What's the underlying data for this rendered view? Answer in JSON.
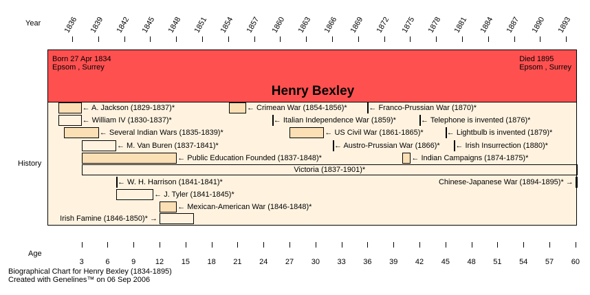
{
  "chart_data": {
    "type": "timeline",
    "title": "Henry Bexley",
    "row_labels": {
      "year": "Year",
      "history": "History",
      "age": "Age"
    },
    "born": {
      "line1": "Born 27 Apr 1834",
      "line2": "Epsom , Surrey"
    },
    "died": {
      "line1": "Died 1895",
      "line2": "Epsom , Surrey"
    },
    "year_ticks": [
      1836,
      1839,
      1842,
      1845,
      1848,
      1851,
      1854,
      1857,
      1860,
      1863,
      1866,
      1869,
      1872,
      1875,
      1878,
      1881,
      1884,
      1887,
      1890,
      1893
    ],
    "age_ticks": [
      3,
      6,
      9,
      12,
      15,
      18,
      21,
      24,
      27,
      30,
      33,
      36,
      39,
      42,
      45,
      48,
      51,
      54,
      57,
      60
    ],
    "birth_year": 1834.32,
    "death_year": 1895,
    "events": [
      {
        "label": "A. Jackson (1829-1837)*",
        "start": 1834.32,
        "end": 1837,
        "row": 0,
        "filled": true,
        "label_side": "right"
      },
      {
        "label": "Crimean War (1854-1856)*",
        "start": 1854,
        "end": 1856,
        "row": 0,
        "filled": true,
        "label_side": "right"
      },
      {
        "label": "Franco-Prussian War (1870)*",
        "start": 1870,
        "end": 1870,
        "row": 0,
        "filled": true,
        "label_side": "right"
      },
      {
        "label": "William IV (1830-1837)*",
        "start": 1834.32,
        "end": 1837,
        "row": 1,
        "filled": false,
        "label_side": "right"
      },
      {
        "label": "Italian Independence War (1859)*",
        "start": 1859,
        "end": 1859,
        "row": 1,
        "filled": true,
        "label_side": "right"
      },
      {
        "label": "Telephone is invented (1876)*",
        "start": 1876,
        "end": 1876,
        "row": 1,
        "filled": true,
        "label_side": "right"
      },
      {
        "label": "Several Indian Wars (1835-1839)*",
        "start": 1835,
        "end": 1839,
        "row": 2,
        "filled": true,
        "label_side": "right"
      },
      {
        "label": "US Civil War (1861-1865)*",
        "start": 1861,
        "end": 1865,
        "row": 2,
        "filled": true,
        "label_side": "right"
      },
      {
        "label": "Lightbulb is invented (1879)*",
        "start": 1879,
        "end": 1879,
        "row": 2,
        "filled": true,
        "label_side": "right"
      },
      {
        "label": "M. Van Buren (1837-1841)*",
        "start": 1837,
        "end": 1841,
        "row": 3,
        "filled": false,
        "label_side": "right"
      },
      {
        "label": "Austro-Prussian War (1866)*",
        "start": 1866,
        "end": 1866,
        "row": 3,
        "filled": true,
        "label_side": "right"
      },
      {
        "label": "Irish Insurrection (1880)*",
        "start": 1880,
        "end": 1880,
        "row": 3,
        "filled": true,
        "label_side": "right"
      },
      {
        "label": "Public Education Founded (1837-1848)*",
        "start": 1837,
        "end": 1848,
        "row": 4,
        "filled": true,
        "label_side": "right"
      },
      {
        "label": "Indian Campaigns (1874-1875)*",
        "start": 1874,
        "end": 1875,
        "row": 4,
        "filled": true,
        "label_side": "right"
      },
      {
        "label": "Victoria (1837-1901)*",
        "start": 1837,
        "end": 1895,
        "row": 5,
        "filled": false,
        "label_side": "inside"
      },
      {
        "label": "W. H. Harrison (1841-1841)*",
        "start": 1841,
        "end": 1841,
        "row": 6,
        "filled": false,
        "label_side": "right"
      },
      {
        "label": "Chinese-Japanese War (1894-1895)*",
        "start": 1894,
        "end": 1895,
        "row": 6,
        "filled": false,
        "label_side": "left"
      },
      {
        "label": "J. Tyler (1841-1845)*",
        "start": 1841,
        "end": 1845.3,
        "row": 7,
        "filled": false,
        "label_side": "right"
      },
      {
        "label": "Mexican-American War (1846-1848)*",
        "start": 1846,
        "end": 1848,
        "row": 8,
        "filled": true,
        "label_side": "right"
      },
      {
        "label": "Irish Famine (1846-1850)*",
        "start": 1846,
        "end": 1850,
        "row": 9,
        "filled": false,
        "label_side": "left"
      }
    ]
  },
  "footer": {
    "line1": "Biographical Chart for Henry Bexley (1834-1895)",
    "line2": "Created with Genelines™ on 06 Sep 2006"
  }
}
